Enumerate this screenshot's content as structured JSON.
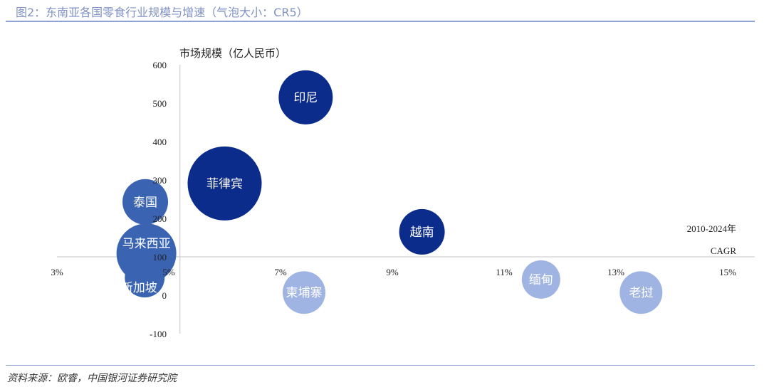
{
  "title": "图2：东南亚各国零食行业规模与增速（气泡大小：CR5）",
  "source": "资料来源：欧睿，中国银河证券研究院",
  "chart_data": {
    "type": "bubble",
    "title": "图2：东南亚各国零食行业规模与增速（气泡大小：CR5）",
    "ylabel": "市场规模（亿人民币）",
    "xlabel_line1": "2010-2024年",
    "xlabel_line2": "CAGR",
    "xlim": [
      3,
      15
    ],
    "ylim": [
      -100,
      600
    ],
    "x_ticks": [
      "3%",
      "5%",
      "7%",
      "9%",
      "11%",
      "13%",
      "15%"
    ],
    "x_tick_values": [
      3,
      5,
      7,
      9,
      11,
      13,
      15
    ],
    "y_ticks": [
      "600",
      "500",
      "400",
      "300",
      "200",
      "100",
      "0",
      "-100"
    ],
    "y_tick_values": [
      600,
      500,
      400,
      300,
      200,
      100,
      0,
      -100
    ],
    "x_axis_crosses_y": 100,
    "y_axis_crosses_x": 5.2,
    "grid": false,
    "colors": {
      "dark": "#0b2c8a",
      "medium": "#3a64b2",
      "light": "#9fb4e2"
    },
    "points": [
      {
        "name": "印尼",
        "x": 7.45,
        "y": 515,
        "size": 38,
        "color": "dark"
      },
      {
        "name": "菲律宾",
        "x": 6.0,
        "y": 291,
        "size": 52,
        "color": "dark"
      },
      {
        "name": "泰国",
        "x": 4.58,
        "y": 243,
        "size": 32,
        "color": "medium"
      },
      {
        "name": "马来西亚",
        "x": 4.6,
        "y": 109,
        "size": 42,
        "color": "medium"
      },
      {
        "name": "新加坡",
        "x": 4.57,
        "y": 46,
        "size": 28,
        "color": "medium"
      },
      {
        "name": "越南",
        "x": 9.53,
        "y": 165,
        "size": 32,
        "color": "dark"
      },
      {
        "name": "柬埔寨",
        "x": 7.42,
        "y": 7,
        "size": 30,
        "color": "light"
      },
      {
        "name": "缅甸",
        "x": 11.66,
        "y": 41,
        "size": 27,
        "color": "light"
      },
      {
        "name": "老挝",
        "x": 13.45,
        "y": 7,
        "size": 30,
        "color": "light"
      }
    ]
  }
}
